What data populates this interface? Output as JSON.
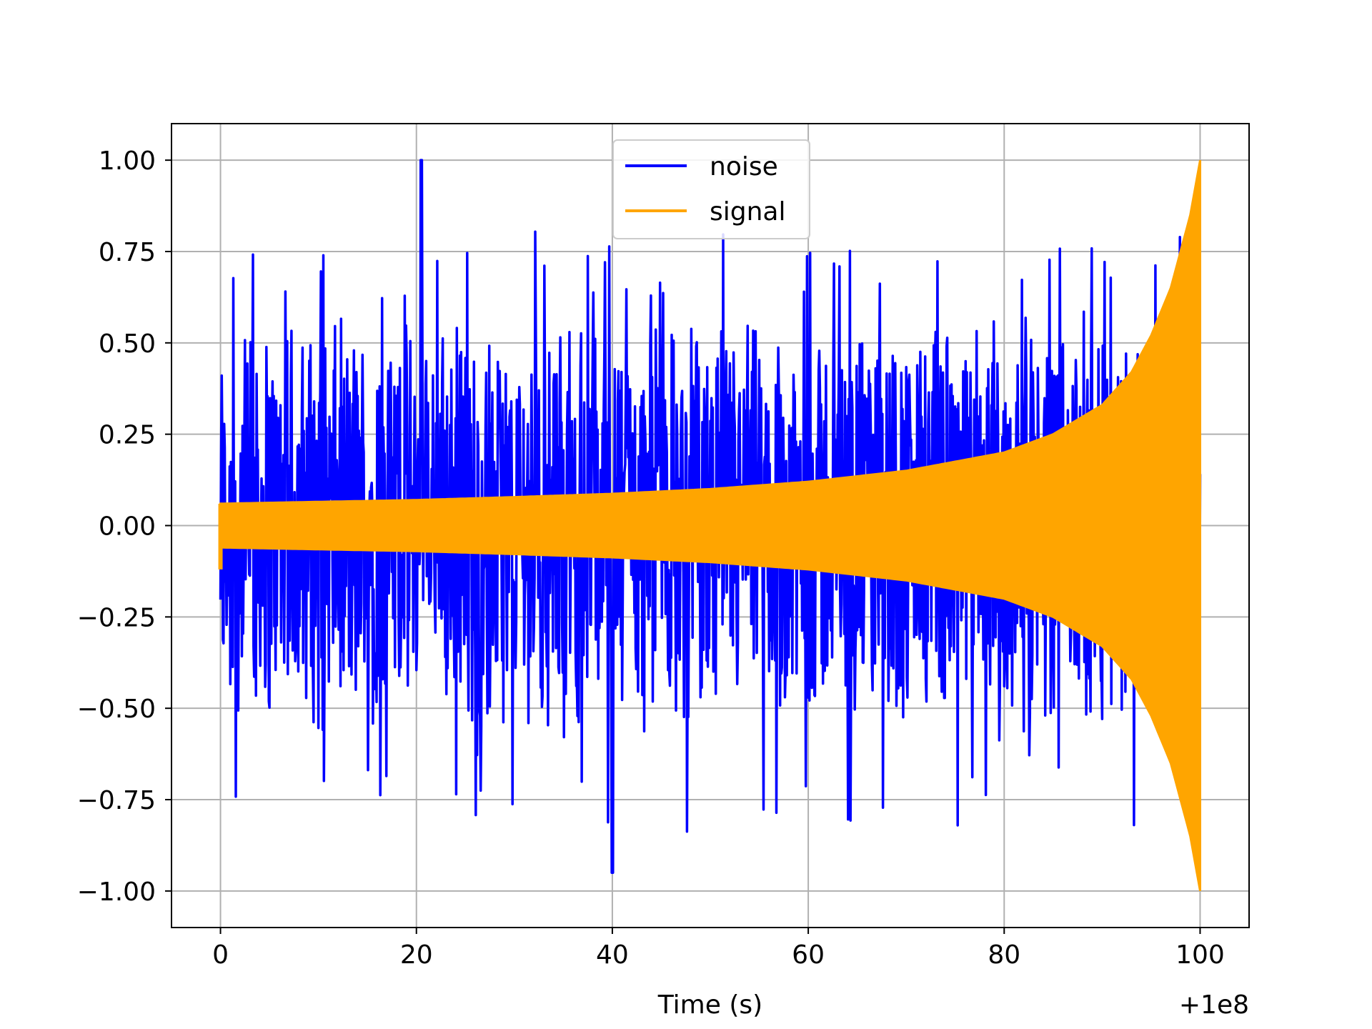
{
  "chart_data": {
    "type": "line",
    "xlabel": "Time (s)",
    "ylabel": "",
    "x_offset_label": "+1e8",
    "xlim": [
      -5,
      105
    ],
    "ylim": [
      -1.1,
      1.1
    ],
    "x_ticks": [
      0,
      20,
      40,
      60,
      80,
      100
    ],
    "x_tick_labels": [
      "0",
      "20",
      "40",
      "60",
      "80",
      "100"
    ],
    "y_ticks": [
      1.0,
      0.75,
      0.5,
      0.25,
      0.0,
      -0.25,
      -0.5,
      -0.75,
      -1.0
    ],
    "y_tick_labels": [
      "1.00",
      "0.75",
      "0.50",
      "0.25",
      "0.00",
      "−0.25",
      "−0.50",
      "−0.75",
      "−1.00"
    ],
    "grid": true,
    "legend_position": "upper center",
    "series": [
      {
        "name": "noise",
        "color": "#0000ff",
        "description_of_values": "random noise spanning the full time range",
        "x_range": [
          0,
          100
        ],
        "typical_peak_positive": 0.55,
        "typical_peak_negative": -0.58,
        "max_value": 1.0,
        "max_at_x": 20.5,
        "min_value": -0.95,
        "min_at_x": 40.0
      },
      {
        "name": "signal",
        "color": "#ffa500",
        "description_of_values": "chirp whose envelope grows from about 0.06 at t=0 to 1.00 at t=100",
        "x_range": [
          0,
          100
        ],
        "envelope": {
          "x": [
            0,
            10,
            20,
            30,
            40,
            50,
            60,
            70,
            80,
            85,
            90,
            93,
            95,
            97,
            99,
            100
          ],
          "y": [
            0.06,
            0.065,
            0.07,
            0.078,
            0.087,
            0.1,
            0.12,
            0.15,
            0.2,
            0.25,
            0.33,
            0.42,
            0.52,
            0.65,
            0.85,
            1.0
          ]
        }
      }
    ]
  }
}
